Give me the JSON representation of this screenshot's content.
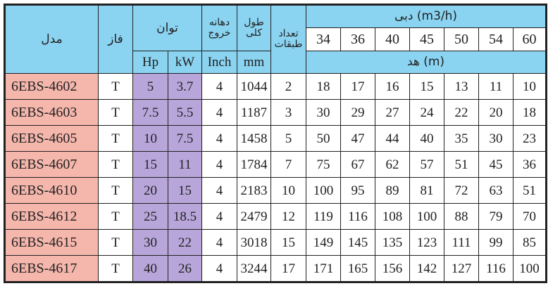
{
  "header": {
    "model": "مدل",
    "phase": "فاز",
    "power": "توان",
    "outlet": "دهانه خروج",
    "length": "طول کلی",
    "stages": "تعداد طبقات",
    "flow": "دبی (m3/h)",
    "head": "هد  (m)",
    "hp": "Hp",
    "kw": "kW",
    "inch": "Inch",
    "mm": "mm"
  },
  "flow_values": [
    "34",
    "36",
    "40",
    "45",
    "50",
    "54",
    "60"
  ],
  "colors": {
    "header": "#8ad3f1",
    "model": "#f5b6ac",
    "power": "#b8a6db"
  },
  "rows": [
    {
      "model": "6EBS-4602",
      "phase": "T",
      "hp": "5",
      "kw": "3.7",
      "inch": "4",
      "mm": "1044",
      "stages": "2",
      "head": [
        "18",
        "17",
        "16",
        "15",
        "13",
        "11",
        "10"
      ]
    },
    {
      "model": "6EBS-4603",
      "phase": "T",
      "hp": "7.5",
      "kw": "5.5",
      "inch": "4",
      "mm": "1187",
      "stages": "3",
      "head": [
        "30",
        "29",
        "27",
        "24",
        "22",
        "20",
        "18"
      ]
    },
    {
      "model": "6EBS-4605",
      "phase": "T",
      "hp": "10",
      "kw": "7.5",
      "inch": "4",
      "mm": "1458",
      "stages": "5",
      "head": [
        "50",
        "47",
        "44",
        "40",
        "35",
        "30",
        "23"
      ]
    },
    {
      "model": "6EBS-4607",
      "phase": "T",
      "hp": "15",
      "kw": "11",
      "inch": "4",
      "mm": "1784",
      "stages": "7",
      "head": [
        "75",
        "67",
        "62",
        "57",
        "51",
        "45",
        "36"
      ]
    },
    {
      "model": "6EBS-4610",
      "phase": "T",
      "hp": "20",
      "kw": "15",
      "inch": "4",
      "mm": "2183",
      "stages": "10",
      "head": [
        "100",
        "95",
        "89",
        "81",
        "72",
        "63",
        "51"
      ]
    },
    {
      "model": "6EBS-4612",
      "phase": "T",
      "hp": "25",
      "kw": "18.5",
      "inch": "4",
      "mm": "2479",
      "stages": "12",
      "head": [
        "119",
        "116",
        "108",
        "100",
        "88",
        "79",
        "70"
      ]
    },
    {
      "model": "6EBS-4615",
      "phase": "T",
      "hp": "30",
      "kw": "22",
      "inch": "4",
      "mm": "3018",
      "stages": "15",
      "head": [
        "149",
        "145",
        "135",
        "123",
        "111",
        "99",
        "85"
      ]
    },
    {
      "model": "6EBS-4617",
      "phase": "T",
      "hp": "40",
      "kw": "26",
      "inch": "4",
      "mm": "3244",
      "stages": "17",
      "head": [
        "171",
        "165",
        "156",
        "142",
        "127",
        "116",
        "100"
      ]
    }
  ]
}
